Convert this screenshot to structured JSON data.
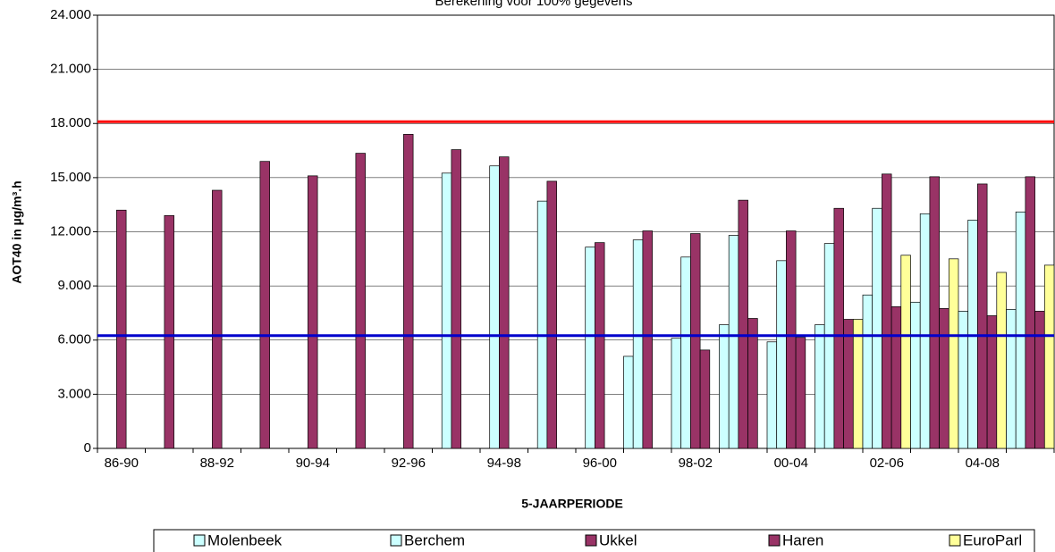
{
  "chart_data": {
    "type": "bar",
    "title": "Berekening voor 100% gegevens",
    "x_label": "5-JAARPERIODE",
    "y_label": "AOT40 in µg/m³.h",
    "categories": [
      "86-90",
      null,
      "88-92",
      null,
      "90-94",
      null,
      "92-96",
      null,
      "94-98",
      null,
      "96-00",
      null,
      "98-02",
      null,
      "00-04",
      null,
      "02-06",
      null,
      "04-08",
      null
    ],
    "series": [
      {
        "name": "Molenbeek",
        "color": "#ccffff",
        "values": [
          null,
          null,
          null,
          null,
          null,
          null,
          null,
          null,
          null,
          null,
          null,
          5100,
          6100,
          6850,
          5900,
          6850,
          8500,
          8100,
          7600,
          7700
        ]
      },
      {
        "name": "Berchem",
        "color": "#ccffff",
        "values": [
          null,
          null,
          null,
          null,
          null,
          null,
          null,
          15250,
          15650,
          13700,
          11150,
          11550,
          10600,
          11800,
          10400,
          11350,
          13300,
          13000,
          12650,
          13100
        ]
      },
      {
        "name": "Ukkel",
        "color": "#993366",
        "values": [
          13200,
          12900,
          14300,
          15900,
          15100,
          16350,
          17400,
          16550,
          16150,
          14800,
          11400,
          12050,
          11900,
          13750,
          12050,
          13300,
          15200,
          15050,
          14650,
          15050
        ]
      },
      {
        "name": "Haren",
        "color": "#993366",
        "values": [
          null,
          null,
          null,
          null,
          null,
          null,
          null,
          null,
          null,
          null,
          null,
          null,
          5450,
          7200,
          6150,
          7150,
          7850,
          7750,
          7350,
          7600
        ]
      },
      {
        "name": "EuroParl",
        "color": "#ffff99",
        "values": [
          null,
          null,
          null,
          null,
          null,
          null,
          null,
          null,
          null,
          null,
          null,
          null,
          null,
          null,
          null,
          7150,
          10700,
          10500,
          9750,
          10150
        ]
      }
    ],
    "reference_lines": [
      {
        "value": 18100,
        "color": "#ff0000"
      },
      {
        "value": 6250,
        "color": "#0000cc"
      }
    ],
    "ylim": [
      0,
      24000
    ],
    "yticks": [
      0,
      {
        "value": 3000,
        "label": "3.000"
      },
      {
        "value": 6000,
        "label": "6.000"
      },
      {
        "value": 9000,
        "label": "9.000"
      },
      {
        "value": 12000,
        "label": "12.000"
      },
      {
        "value": 15000,
        "label": "15.000"
      },
      {
        "value": 18000,
        "label": "18.000"
      },
      {
        "value": 21000,
        "label": "21.000"
      },
      {
        "value": 24000,
        "label": "24.000"
      }
    ],
    "grid": true
  }
}
